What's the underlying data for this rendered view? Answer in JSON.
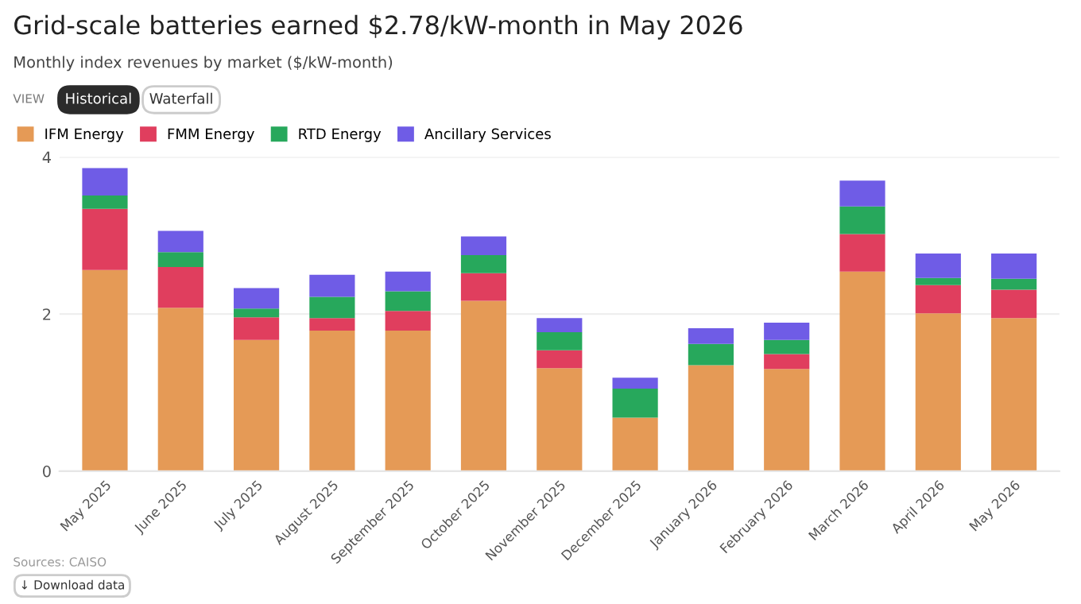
{
  "chart_data": {
    "type": "bar",
    "stacked": true,
    "title": "Grid-scale batteries earned $2.78/kW-month in May 2026",
    "subtitle": "Monthly index revenues by market ($/kW-month)",
    "categories": [
      "May 2025",
      "June 2025",
      "July 2025",
      "August 2025",
      "September 2025",
      "October 2025",
      "November 2025",
      "December 2025",
      "January 2026",
      "February 2026",
      "March 2026",
      "April 2026",
      "May 2026"
    ],
    "series": [
      {
        "name": "IFM Energy",
        "color": "#e59a56",
        "values": [
          2.56,
          2.08,
          1.67,
          1.79,
          1.79,
          2.17,
          1.31,
          0.68,
          1.35,
          1.3,
          2.54,
          2.01,
          1.95
        ]
      },
      {
        "name": "FMM Energy",
        "color": "#e03e5e",
        "values": [
          0.78,
          0.52,
          0.29,
          0.16,
          0.25,
          0.35,
          0.23,
          0,
          0,
          0.19,
          0.48,
          0.36,
          0.36
        ]
      },
      {
        "name": "RTD Energy",
        "color": "#27a85c",
        "values": [
          0.17,
          0.19,
          0.11,
          0.27,
          0.25,
          0.23,
          0.23,
          0.37,
          0.27,
          0.18,
          0.35,
          0.09,
          0.14
        ]
      },
      {
        "name": "Ancillary Services",
        "color": "#6f5ce6",
        "values": [
          0.35,
          0.27,
          0.26,
          0.28,
          0.25,
          0.24,
          0.18,
          0.14,
          0.2,
          0.22,
          0.33,
          0.31,
          0.32
        ]
      }
    ],
    "ylim": [
      0,
      4
    ],
    "yticks": [
      0,
      2,
      4
    ],
    "grid": "y",
    "legend": "top",
    "annotations": [
      "VIEW",
      "Historical",
      "Waterfall",
      "Sources: CAISO",
      "↓ Download data"
    ]
  }
}
